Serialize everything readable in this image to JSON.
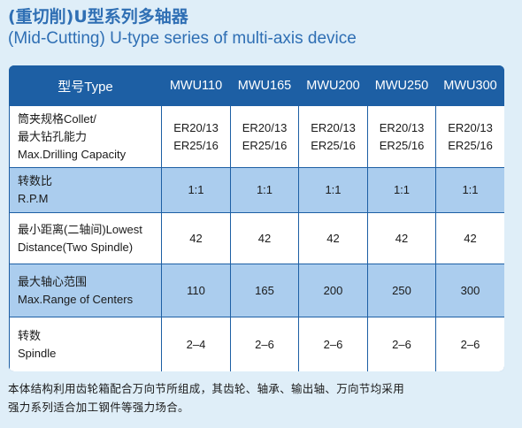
{
  "header": {
    "title_zh": "(重切削)U型系列多轴器",
    "title_en": "(Mid-Cutting) U-type series of multi-axis device"
  },
  "table": {
    "header_label": "型号Type",
    "models": [
      "MWU110",
      "MWU165",
      "MWU200",
      "MWU250",
      "MWU300"
    ],
    "rows": [
      {
        "label_lines": [
          "筒夹规格Collet/",
          "最大钻孔能力",
          "Max.Drilling Capacity"
        ],
        "values": [
          [
            "ER20/13",
            "ER25/16"
          ],
          [
            "ER20/13",
            "ER25/16"
          ],
          [
            "ER20/13",
            "ER25/16"
          ],
          [
            "ER20/13",
            "ER25/16"
          ],
          [
            "ER20/13",
            "ER25/16"
          ]
        ]
      },
      {
        "label_lines": [
          "转数比",
          "R.P.M"
        ],
        "values": [
          [
            "1:1"
          ],
          [
            "1:1"
          ],
          [
            "1:1"
          ],
          [
            "1:1"
          ],
          [
            "1:1"
          ]
        ]
      },
      {
        "label_lines": [
          "最小距离(二轴间)Lowest",
          "Distance(Two Spindle)"
        ],
        "values": [
          [
            "42"
          ],
          [
            "42"
          ],
          [
            "42"
          ],
          [
            "42"
          ],
          [
            "42"
          ]
        ]
      },
      {
        "label_lines": [
          "最大轴心范围",
          "Max.Range of Centers"
        ],
        "values": [
          [
            "110"
          ],
          [
            "165"
          ],
          [
            "200"
          ],
          [
            "250"
          ],
          [
            "300"
          ]
        ]
      },
      {
        "label_lines": [
          "转数",
          "Spindle"
        ],
        "values": [
          [
            "2–4"
          ],
          [
            "2–6"
          ],
          [
            "2–6"
          ],
          [
            "2–6"
          ],
          [
            "2–6"
          ]
        ]
      }
    ]
  },
  "footer": {
    "lines": [
      "本体结构利用齿轮箱配合万向节所组成，其齿轮、轴承、输出轴、万向节均采用",
      "强力系列适合加工钢件等强力场合。"
    ]
  },
  "colors": {
    "title": "#2f6fb4",
    "table_header": "#1d5fa4",
    "row_light": "#ffffff",
    "row_blue": "#abcdee",
    "background": "#dfeef8"
  }
}
